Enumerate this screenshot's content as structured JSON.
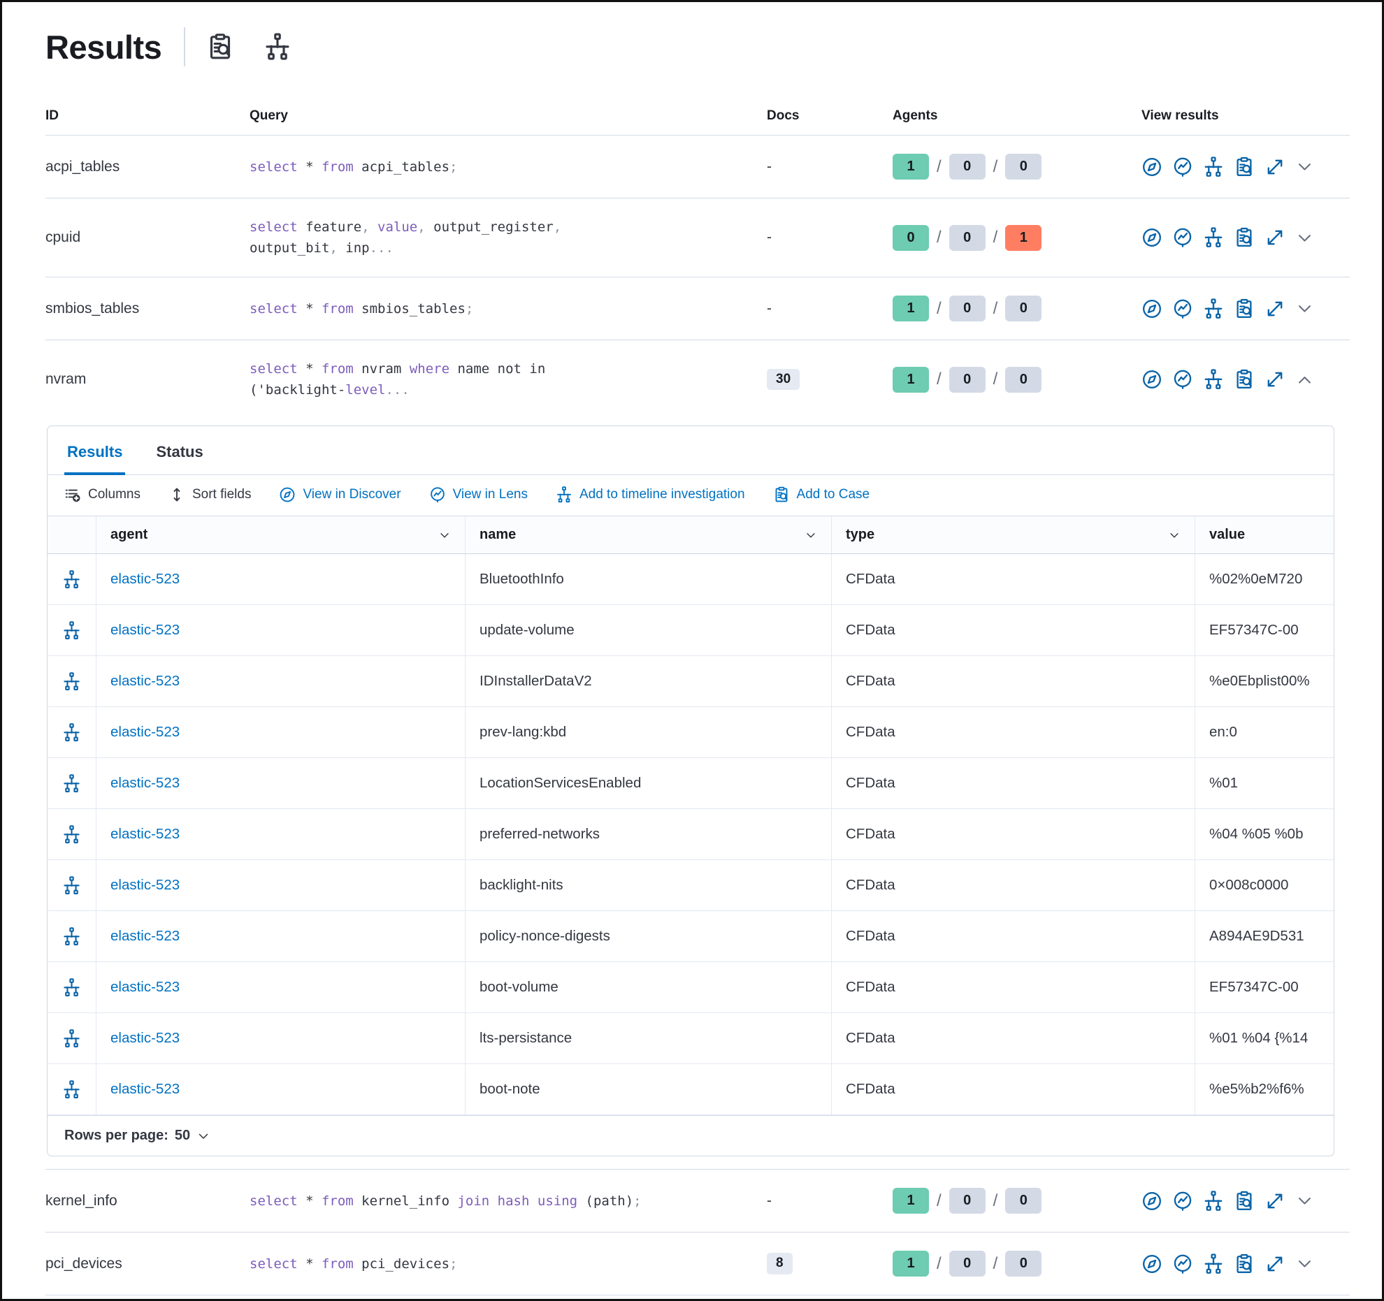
{
  "page": {
    "title": "Results"
  },
  "title_icons": [
    "inspect-icon",
    "timeline-icon"
  ],
  "colors": {
    "primary_blue": "#0071c2",
    "icon_blue": "#0b64a8",
    "success_badge": "#6dccb1",
    "neutral_badge": "#d3dae6",
    "danger_badge": "#ff7e62",
    "code_keyword": "#7e5cbc",
    "row_border": "#d3dae6"
  },
  "results_table": {
    "columns": [
      "ID",
      "Query",
      "Docs",
      "Agents",
      "View results"
    ],
    "view_results_icons": [
      "discover-icon",
      "lens-icon",
      "timeline-icon",
      "case-icon",
      "expand-icon"
    ],
    "rows": [
      {
        "id": "acpi_tables",
        "query_lines": [
          [
            [
              "kw",
              "select"
            ],
            [
              "pl",
              " * "
            ],
            [
              "kw",
              "from"
            ],
            [
              "pl",
              " acpi_tables"
            ],
            [
              "pu",
              ";"
            ]
          ]
        ],
        "docs": "-",
        "docs_is_badge": false,
        "agents": [
          {
            "v": "1",
            "c": "success"
          },
          {
            "v": "0",
            "c": "neutral"
          },
          {
            "v": "0",
            "c": "neutral"
          }
        ],
        "expanded": false
      },
      {
        "id": "cpuid",
        "query_lines": [
          [
            [
              "kw",
              "select"
            ],
            [
              "pl",
              " feature"
            ],
            [
              "pu",
              ","
            ],
            [
              "kw",
              " value"
            ],
            [
              "pu",
              ","
            ],
            [
              "pl",
              " output_register"
            ],
            [
              "pu",
              ","
            ]
          ],
          [
            [
              "pl",
              "output_bit"
            ],
            [
              "pu",
              ","
            ],
            [
              "pl",
              " inp"
            ],
            [
              "pu",
              "..."
            ]
          ]
        ],
        "docs": "-",
        "docs_is_badge": false,
        "agents": [
          {
            "v": "0",
            "c": "success"
          },
          {
            "v": "0",
            "c": "neutral"
          },
          {
            "v": "1",
            "c": "danger"
          }
        ],
        "expanded": false
      },
      {
        "id": "smbios_tables",
        "query_lines": [
          [
            [
              "kw",
              "select"
            ],
            [
              "pl",
              " * "
            ],
            [
              "kw",
              "from"
            ],
            [
              "pl",
              " smbios_tables"
            ],
            [
              "pu",
              ";"
            ]
          ]
        ],
        "docs": "-",
        "docs_is_badge": false,
        "agents": [
          {
            "v": "1",
            "c": "success"
          },
          {
            "v": "0",
            "c": "neutral"
          },
          {
            "v": "0",
            "c": "neutral"
          }
        ],
        "expanded": false
      },
      {
        "id": "nvram",
        "query_lines": [
          [
            [
              "kw",
              "select"
            ],
            [
              "pl",
              " * "
            ],
            [
              "kw",
              "from"
            ],
            [
              "pl",
              " nvram "
            ],
            [
              "kw",
              "where"
            ],
            [
              "pl",
              " name not in"
            ]
          ],
          [
            [
              "pl",
              "('backlight-"
            ],
            [
              "kw",
              "level"
            ],
            [
              "pu",
              "..."
            ]
          ]
        ],
        "docs": "30",
        "docs_is_badge": true,
        "agents": [
          {
            "v": "1",
            "c": "success"
          },
          {
            "v": "0",
            "c": "neutral"
          },
          {
            "v": "0",
            "c": "neutral"
          }
        ],
        "expanded": true
      },
      {
        "id": "kernel_info",
        "query_lines": [
          [
            [
              "kw",
              "select"
            ],
            [
              "pl",
              " * "
            ],
            [
              "kw",
              "from"
            ],
            [
              "pl",
              " kernel_info "
            ],
            [
              "kw",
              "join"
            ],
            [
              "pl",
              " "
            ],
            [
              "kw",
              "hash"
            ],
            [
              "pl",
              " "
            ],
            [
              "kw",
              "using"
            ],
            [
              "pl",
              " (path)"
            ],
            [
              "pu",
              ";"
            ]
          ]
        ],
        "docs": "-",
        "docs_is_badge": false,
        "agents": [
          {
            "v": "1",
            "c": "success"
          },
          {
            "v": "0",
            "c": "neutral"
          },
          {
            "v": "0",
            "c": "neutral"
          }
        ],
        "expanded": false
      },
      {
        "id": "pci_devices",
        "query_lines": [
          [
            [
              "kw",
              "select"
            ],
            [
              "pl",
              " * "
            ],
            [
              "kw",
              "from"
            ],
            [
              "pl",
              " pci_devices"
            ],
            [
              "pu",
              ";"
            ]
          ]
        ],
        "docs": "8",
        "docs_is_badge": true,
        "agents": [
          {
            "v": "1",
            "c": "success"
          },
          {
            "v": "0",
            "c": "neutral"
          },
          {
            "v": "0",
            "c": "neutral"
          }
        ],
        "expanded": false
      }
    ]
  },
  "expanded_panel": {
    "tabs": [
      {
        "label": "Results",
        "active": true
      },
      {
        "label": "Status",
        "active": false
      }
    ],
    "toolbar": [
      {
        "label": "Columns",
        "icon": "columns-icon",
        "variant": "dark"
      },
      {
        "label": "Sort fields",
        "icon": "sort-fields-icon",
        "variant": "dark"
      },
      {
        "label": "View in Discover",
        "icon": "discover-icon",
        "variant": "primary"
      },
      {
        "label": "View in Lens",
        "icon": "lens-icon",
        "variant": "primary"
      },
      {
        "label": "Add to timeline investigation",
        "icon": "timeline-icon",
        "variant": "primary"
      },
      {
        "label": "Add to Case",
        "icon": "case-icon",
        "variant": "primary"
      }
    ],
    "grid": {
      "columns": [
        {
          "label": "agent",
          "sortable": true
        },
        {
          "label": "name",
          "sortable": true
        },
        {
          "label": "type",
          "sortable": true
        },
        {
          "label": "value",
          "sortable": false
        }
      ],
      "row_icon": "timeline-icon",
      "rows": [
        {
          "agent": "elastic-523",
          "name": "BluetoothInfo",
          "type": "CFData",
          "value": "%02%0eM720"
        },
        {
          "agent": "elastic-523",
          "name": "update-volume",
          "type": "CFData",
          "value": "EF57347C-00"
        },
        {
          "agent": "elastic-523",
          "name": "IDInstallerDataV2",
          "type": "CFData",
          "value": "%e0Ebplist00%"
        },
        {
          "agent": "elastic-523",
          "name": "prev-lang:kbd",
          "type": "CFData",
          "value": "en:0"
        },
        {
          "agent": "elastic-523",
          "name": "LocationServicesEnabled",
          "type": "CFData",
          "value": "%01"
        },
        {
          "agent": "elastic-523",
          "name": "preferred-networks",
          "type": "CFData",
          "value": "%04 %05 %0b"
        },
        {
          "agent": "elastic-523",
          "name": "backlight-nits",
          "type": "CFData",
          "value": "0×008c0000"
        },
        {
          "agent": "elastic-523",
          "name": "policy-nonce-digests",
          "type": "CFData",
          "value": "A894AE9D531"
        },
        {
          "agent": "elastic-523",
          "name": "boot-volume",
          "type": "CFData",
          "value": "EF57347C-00"
        },
        {
          "agent": "elastic-523",
          "name": "lts-persistance",
          "type": "CFData",
          "value": "%01 %04 {%14"
        },
        {
          "agent": "elastic-523",
          "name": "boot-note",
          "type": "CFData",
          "value": "%e5%b2%f6%"
        }
      ],
      "footer": {
        "rows_per_page_label": "Rows per page:",
        "rows_per_page_value": "50"
      }
    }
  }
}
